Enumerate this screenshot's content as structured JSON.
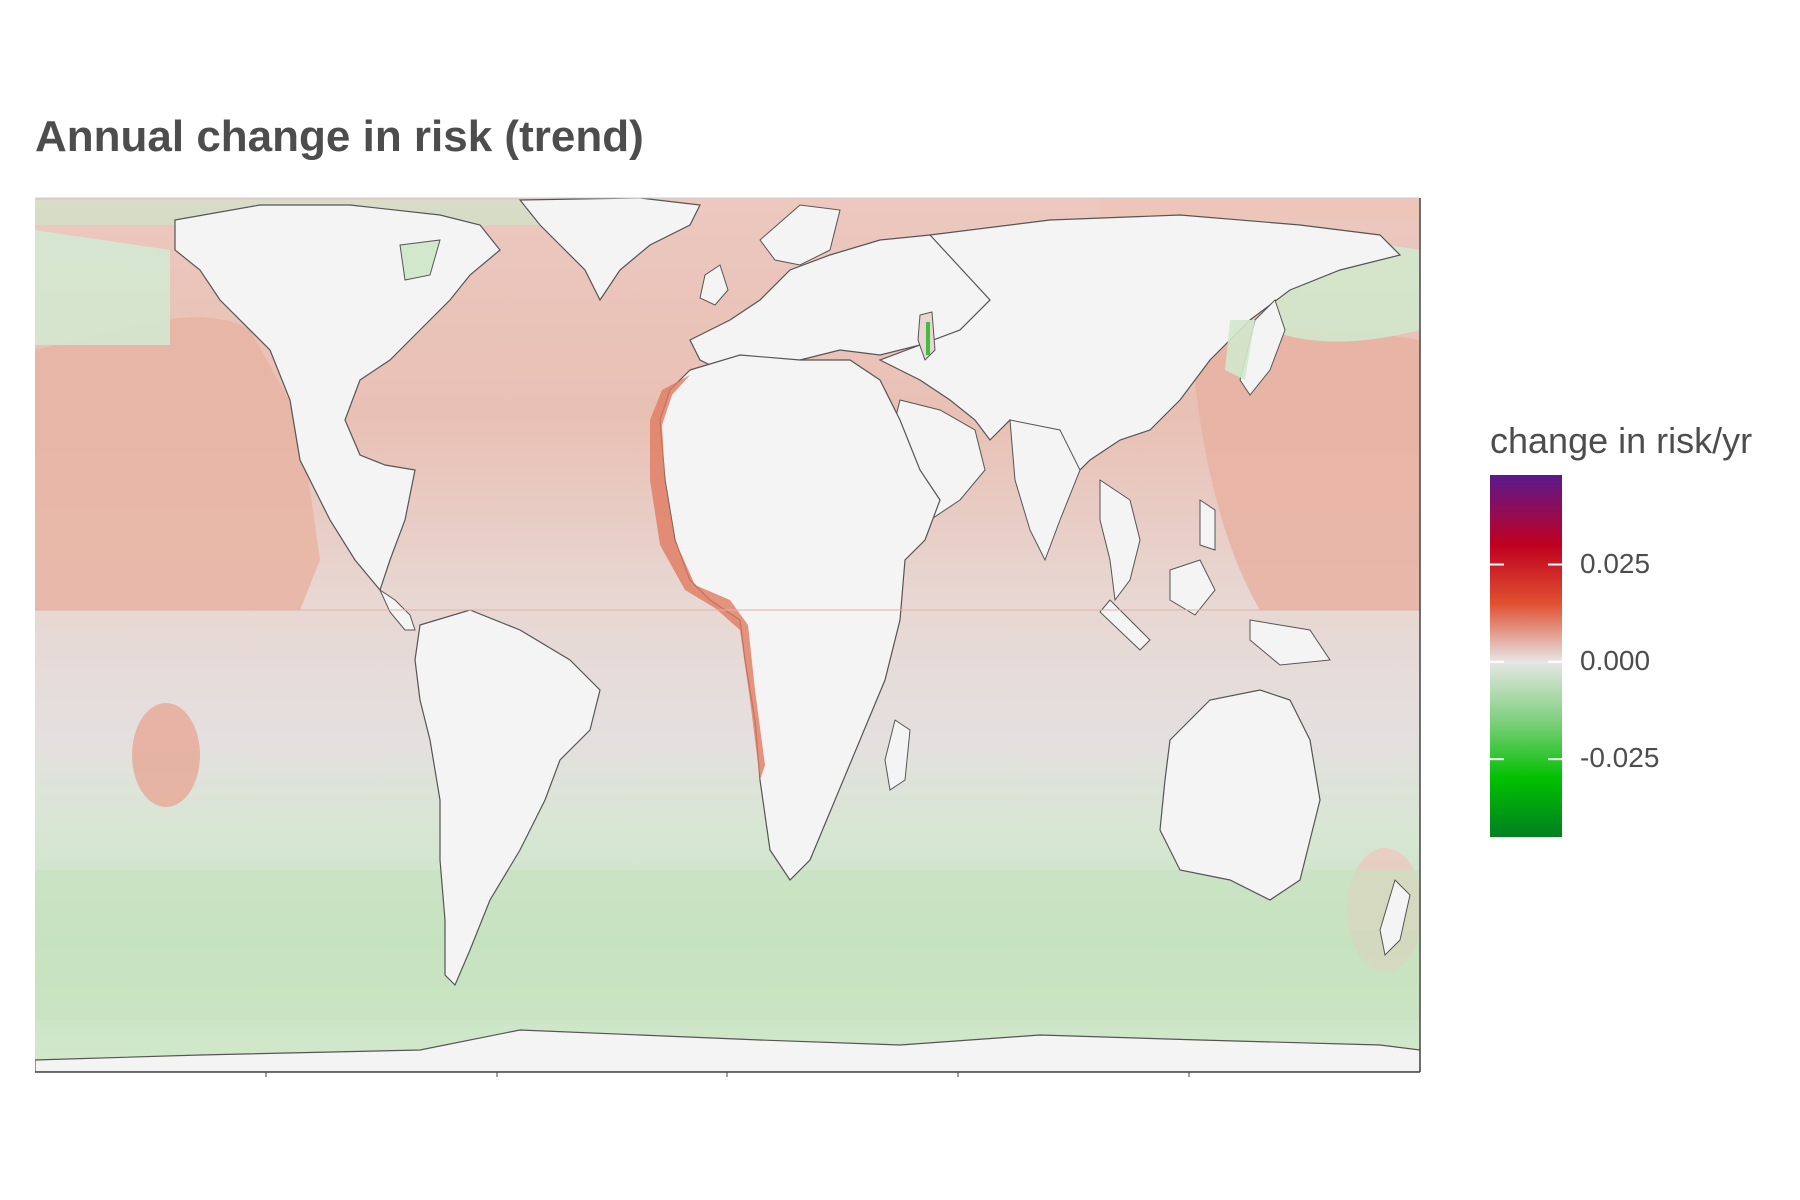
{
  "title": "Annual change in risk (trend)",
  "legend": {
    "title": "change in risk/yr",
    "ticks": [
      {
        "value": 0.025,
        "label": "0.025"
      },
      {
        "value": 0.0,
        "label": "0.000"
      },
      {
        "value": -0.025,
        "label": "-0.025"
      }
    ],
    "range": [
      -0.045,
      0.048
    ],
    "gradient": [
      {
        "value": 0.048,
        "color": "#5a1a8c"
      },
      {
        "value": 0.03,
        "color": "#c00020"
      },
      {
        "value": 0.015,
        "color": "#e05030"
      },
      {
        "value": 0.0,
        "color": "#e6e6e6"
      },
      {
        "value": -0.015,
        "color": "#80d080"
      },
      {
        "value": -0.03,
        "color": "#00c000"
      },
      {
        "value": -0.045,
        "color": "#008020"
      }
    ]
  },
  "colors": {
    "land": "#f4f4f4",
    "coastline": "#555555",
    "increase_light": "#ecc8bf",
    "increase_mid": "#e8b4a6",
    "increase_strong": "#e07a60",
    "neutral": "#e4e4e4",
    "decrease_light": "#d6e8d2",
    "decrease_mid": "#c2e2bc"
  }
}
